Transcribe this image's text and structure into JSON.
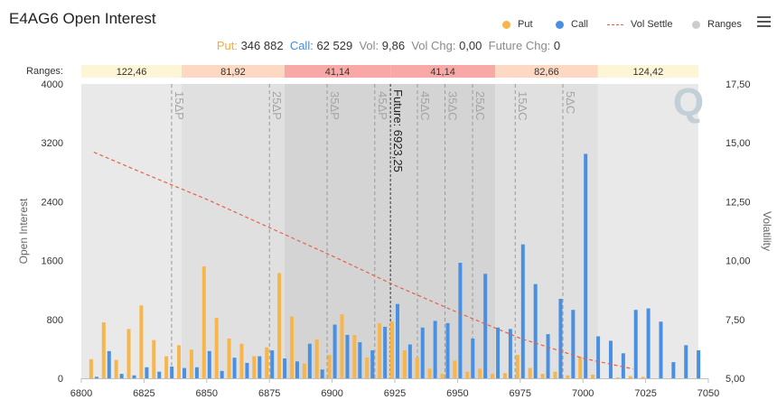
{
  "title": "E4AG6 Open Interest",
  "legend": {
    "put": "Put",
    "call": "Call",
    "vol": "Vol Settle",
    "ranges": "Ranges"
  },
  "stats": {
    "put_label": "Put:",
    "put_value": "346 882",
    "call_label": "Call:",
    "call_value": "62 529",
    "vol_label": "Vol:",
    "vol_value": "9,86",
    "volchg_label": "Vol Chg:",
    "volchg_value": "0,00",
    "futchg_label": "Future Chg:",
    "futchg_value": "0"
  },
  "colors": {
    "put": "#f7b54a",
    "call": "#4a90e2",
    "vol": "#e5604a",
    "ranges_dot": "#cccccc"
  },
  "chart_data": {
    "type": "bar",
    "xlim": [
      6800,
      7050
    ],
    "x_ticks": [
      "6800",
      "6825",
      "6850",
      "6875",
      "6900",
      "6925",
      "6950",
      "6975",
      "7000",
      "7025",
      "7050"
    ],
    "ylim": [
      0,
      4000
    ],
    "y_ticks": [
      "0",
      "800",
      "1600",
      "2400",
      "3200",
      "4000"
    ],
    "ylabel": "Open Interest",
    "y2lim": [
      5,
      17.5
    ],
    "y2_ticks": [
      "5,00",
      "7,50",
      "10,00",
      "12,50",
      "15,00",
      "17,50"
    ],
    "y2label": "Volatility",
    "ranges_label": "Ranges:",
    "ranges": [
      {
        "from": 6800,
        "to": 6840,
        "label": "122,46",
        "color": "#fdf6d6"
      },
      {
        "from": 6840,
        "to": 6881,
        "label": "81,92",
        "color": "#fdd9c4"
      },
      {
        "from": 6881,
        "to": 6923.25,
        "label": "41,14",
        "color": "#f8a9a7"
      },
      {
        "from": 6923.25,
        "to": 6965,
        "label": "41,14",
        "color": "#f8a9a7"
      },
      {
        "from": 6965,
        "to": 7006,
        "label": "82,66",
        "color": "#fdd9c4"
      },
      {
        "from": 7006,
        "to": 7046,
        "label": "124,42",
        "color": "#fdf6d6"
      }
    ],
    "band_shades": [
      "#e9e9e9",
      "#e0e0e0",
      "#d4d4d4",
      "#d4d4d4",
      "#e0e0e0",
      "#e9e9e9"
    ],
    "delta_lines": [
      {
        "x": 6836,
        "label": "15ΔP"
      },
      {
        "x": 6875,
        "label": "25ΔP"
      },
      {
        "x": 6898,
        "label": "35ΔP"
      },
      {
        "x": 6917,
        "label": "45ΔP"
      },
      {
        "x": 6934,
        "label": "45ΔC"
      },
      {
        "x": 6945,
        "label": "35ΔC"
      },
      {
        "x": 6956,
        "label": "25ΔC"
      },
      {
        "x": 6973,
        "label": "15ΔC"
      },
      {
        "x": 6992,
        "label": "5ΔC"
      }
    ],
    "future": {
      "x": 6923.25,
      "label": "Future: 6923,25"
    },
    "strikes": [
      6805,
      6810,
      6815,
      6820,
      6825,
      6830,
      6835,
      6840,
      6845,
      6850,
      6855,
      6860,
      6865,
      6870,
      6875,
      6880,
      6885,
      6890,
      6895,
      6900,
      6905,
      6910,
      6915,
      6920,
      6925,
      6930,
      6935,
      6940,
      6945,
      6950,
      6955,
      6960,
      6965,
      6970,
      6975,
      6980,
      6985,
      6990,
      6995,
      7000,
      7005,
      7010,
      7015,
      7020,
      7025,
      7030,
      7035,
      7040,
      7045
    ],
    "series": [
      {
        "name": "Put",
        "values": [
          260,
          760,
          250,
          670,
          990,
          520,
          300,
          450,
          390,
          1520,
          820,
          540,
          470,
          300,
          420,
          1430,
          840,
          200,
          530,
          320,
          870,
          590,
          280,
          750,
          770,
          380,
          280,
          130,
          60,
          240,
          90,
          130,
          60,
          70,
          320,
          140,
          60,
          90,
          40,
          290,
          50,
          0,
          10,
          30,
          20,
          0,
          0,
          0,
          0
        ]
      },
      {
        "name": "Call",
        "values": [
          20,
          370,
          60,
          40,
          150,
          90,
          160,
          140,
          150,
          370,
          100,
          280,
          210,
          300,
          380,
          270,
          230,
          470,
          120,
          730,
          590,
          490,
          380,
          700,
          1010,
          460,
          690,
          780,
          750,
          1570,
          540,
          1420,
          690,
          670,
          1820,
          1280,
          600,
          1080,
          930,
          3050,
          570,
          510,
          340,
          930,
          950,
          770,
          220,
          450,
          380
        ]
      },
      {
        "name": "Vol Settle",
        "points": [
          [
            6805,
            14.6
          ],
          [
            6825,
            13.7
          ],
          [
            6850,
            12.6
          ],
          [
            6875,
            11.4
          ],
          [
            6900,
            10.2
          ],
          [
            6925,
            8.95
          ],
          [
            6950,
            7.8
          ],
          [
            6975,
            6.7
          ],
          [
            7000,
            5.85
          ],
          [
            7020,
            5.4
          ]
        ]
      }
    ]
  }
}
